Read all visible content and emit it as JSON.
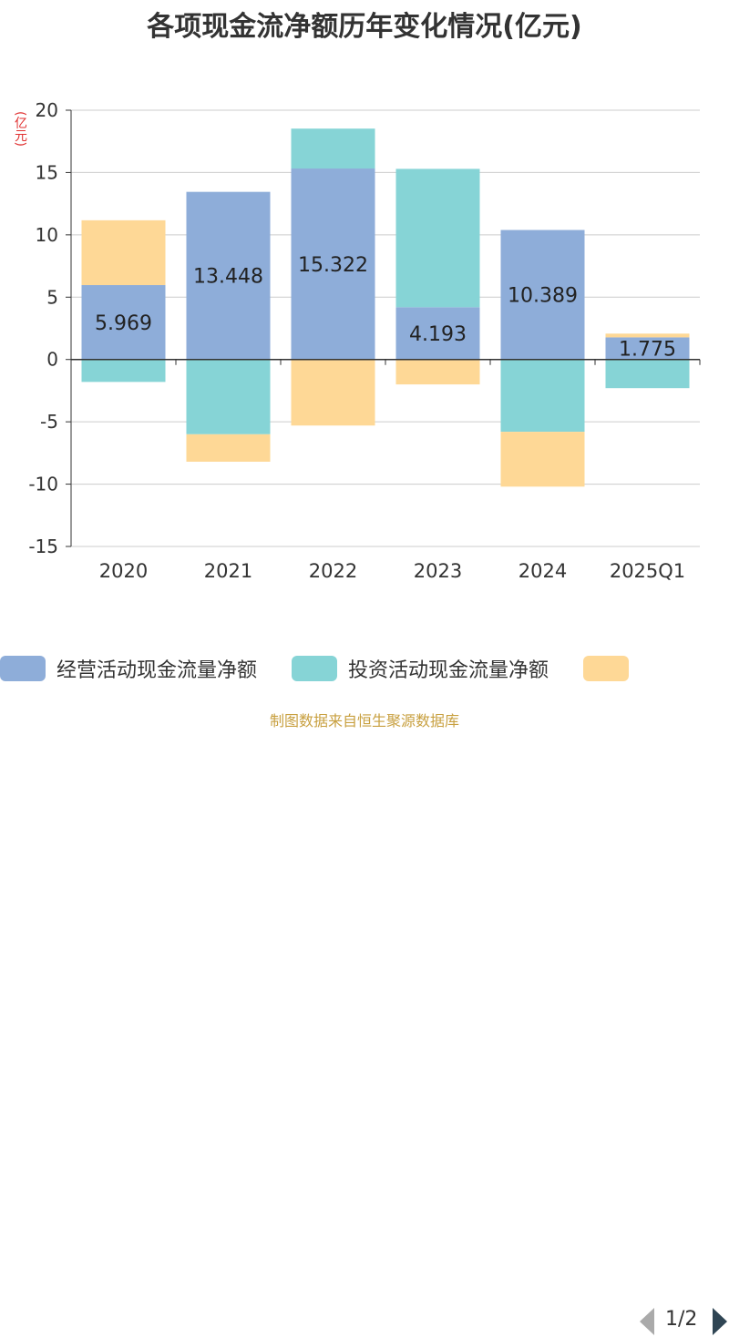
{
  "title": "各项现金流净额历年变化情况(亿元)",
  "source_note": "制图数据来自恒生聚源数据库",
  "colors": {
    "operating": "#8eadd9",
    "investing": "#86d4d6",
    "financing": "#fed896",
    "axis": "#333333",
    "grid": "#cccccc"
  },
  "legend": {
    "items": [
      "经营活动现金流量净额",
      "投资活动现金流量净额",
      ""
    ],
    "page": "1/2"
  },
  "chart_data": {
    "type": "bar",
    "stacked": true,
    "ylabel": "(亿元)",
    "ylim": [
      -15,
      20
    ],
    "yticks": [
      20,
      15,
      10,
      5,
      0,
      -5,
      -10,
      -15
    ],
    "grid": true,
    "legend_position": "bottom",
    "categories": [
      "2020",
      "2021",
      "2022",
      "2023",
      "2024",
      "2025Q1"
    ],
    "series": [
      {
        "name": "经营活动现金流量净额",
        "values": [
          5.969,
          13.448,
          15.322,
          4.193,
          10.389,
          1.775
        ],
        "labels": [
          "5.969",
          "13.448",
          "15.322",
          "4.193",
          "10.389",
          "1.775"
        ]
      },
      {
        "name": "投资活动现金流量净额",
        "values": [
          -1.8,
          -6.0,
          3.2,
          11.1,
          -5.8,
          -2.3
        ]
      },
      {
        "values": [
          5.2,
          -2.2,
          -5.3,
          -2.0,
          -4.4,
          0.3
        ]
      }
    ]
  }
}
